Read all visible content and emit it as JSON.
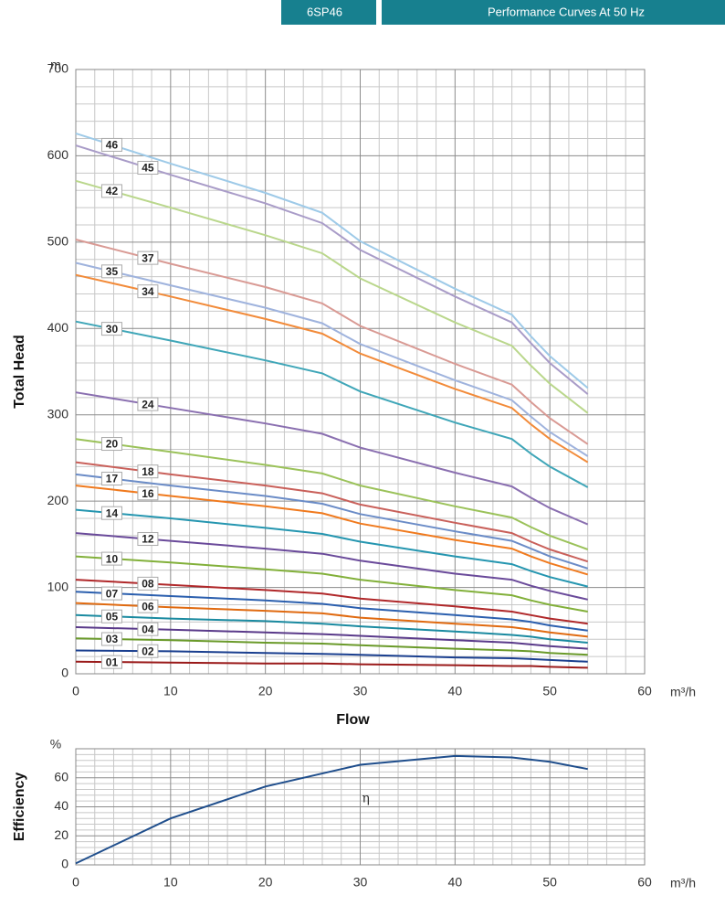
{
  "header": {
    "model": "6SP46",
    "title": "Performance Curves At 50 Hz"
  },
  "chart_data": [
    {
      "type": "line",
      "xlabel": "Flow",
      "ylabel": "Total Head",
      "x_unit": "m³/h",
      "y_unit": "m",
      "xlim": [
        0,
        60
      ],
      "xticks": [
        0,
        10,
        20,
        30,
        40,
        50,
        60
      ],
      "ylim": [
        0,
        700
      ],
      "yticks": [
        0,
        100,
        200,
        300,
        400,
        500,
        600,
        700
      ],
      "grid": true,
      "x": [
        0,
        10,
        20,
        26,
        30,
        40,
        46,
        48,
        50,
        54
      ],
      "series": [
        {
          "name": "46",
          "color": "#9ecae8",
          "values": [
            626,
            591,
            557,
            534,
            501,
            446,
            416,
            391,
            368,
            331
          ]
        },
        {
          "name": "45",
          "color": "#a99cc8",
          "values": [
            612,
            578,
            545,
            522,
            491,
            437,
            407,
            383,
            360,
            324
          ]
        },
        {
          "name": "42",
          "color": "#bad78c",
          "values": [
            571,
            540,
            508,
            487,
            458,
            407,
            380,
            357,
            336,
            302
          ]
        },
        {
          "name": "37",
          "color": "#d99a94",
          "values": [
            503,
            475,
            448,
            429,
            403,
            359,
            335,
            315,
            296,
            266
          ]
        },
        {
          "name": "35",
          "color": "#9fb3dd",
          "values": [
            476,
            450,
            424,
            406,
            382,
            340,
            317,
            298,
            280,
            252
          ]
        },
        {
          "name": "34",
          "color": "#f28b3a",
          "values": [
            462,
            437,
            411,
            394,
            371,
            330,
            308,
            289,
            272,
            245
          ]
        },
        {
          "name": "30",
          "color": "#3fa6b8",
          "values": [
            408,
            386,
            363,
            348,
            327,
            291,
            272,
            255,
            240,
            216
          ]
        },
        {
          "name": "24",
          "color": "#8a6fb0",
          "values": [
            326,
            308,
            290,
            278,
            262,
            233,
            217,
            204,
            192,
            173
          ]
        },
        {
          "name": "20",
          "color": "#9bc25a",
          "values": [
            272,
            257,
            242,
            232,
            218,
            194,
            181,
            170,
            160,
            144
          ]
        },
        {
          "name": "18",
          "color": "#c9605a",
          "values": [
            245,
            231,
            218,
            209,
            196,
            175,
            163,
            153,
            144,
            130
          ]
        },
        {
          "name": "17",
          "color": "#6b8cc7",
          "values": [
            231,
            218,
            206,
            197,
            185,
            165,
            154,
            145,
            136,
            122
          ]
        },
        {
          "name": "16",
          "color": "#f07a1e",
          "values": [
            218,
            206,
            194,
            186,
            174,
            155,
            145,
            136,
            128,
            115
          ]
        },
        {
          "name": "14",
          "color": "#2596b0",
          "values": [
            190,
            180,
            169,
            162,
            153,
            136,
            127,
            119,
            112,
            101
          ]
        },
        {
          "name": "12",
          "color": "#6a4a9a",
          "values": [
            163,
            154,
            145,
            139,
            131,
            116,
            109,
            102,
            96,
            86
          ]
        },
        {
          "name": "10",
          "color": "#82b03a",
          "values": [
            136,
            129,
            121,
            116,
            109,
            97,
            91,
            85,
            80,
            72
          ]
        },
        {
          "name": "08",
          "color": "#b0282a",
          "values": [
            109,
            103,
            97,
            93,
            87,
            78,
            72,
            68,
            64,
            58
          ]
        },
        {
          "name": "07",
          "color": "#2b5fae",
          "values": [
            95,
            90,
            85,
            81,
            76,
            68,
            63,
            60,
            56,
            50
          ]
        },
        {
          "name": "06",
          "color": "#e06a10",
          "values": [
            82,
            77,
            73,
            70,
            65,
            58,
            54,
            51,
            48,
            43
          ]
        },
        {
          "name": "05",
          "color": "#1a8aa0",
          "values": [
            68,
            64,
            61,
            58,
            55,
            49,
            45,
            43,
            40,
            36
          ]
        },
        {
          "name": "04",
          "color": "#5a3a8a",
          "values": [
            54,
            51,
            48,
            46,
            44,
            39,
            36,
            34,
            32,
            29
          ]
        },
        {
          "name": "03",
          "color": "#6a9a2a",
          "values": [
            41,
            39,
            36,
            35,
            33,
            29,
            27,
            26,
            24,
            22
          ]
        },
        {
          "name": "02",
          "color": "#1a3f8f",
          "values": [
            27,
            26,
            24,
            23,
            22,
            19,
            18,
            17,
            16,
            14
          ]
        },
        {
          "name": "01",
          "color": "#9a1a1a",
          "values": [
            14,
            13,
            12,
            12,
            11,
            10,
            9,
            9,
            8,
            7
          ]
        }
      ]
    },
    {
      "type": "line",
      "ylabel": "Efficiency",
      "x_unit": "m³/h",
      "y_unit": "%",
      "annotation": "η",
      "xlim": [
        0,
        60
      ],
      "xticks": [
        0,
        10,
        20,
        30,
        40,
        50,
        60
      ],
      "ylim": [
        0,
        80
      ],
      "yticks": [
        0,
        20,
        40,
        60
      ],
      "grid": true,
      "x": [
        0,
        10,
        20,
        30,
        40,
        46,
        50,
        54
      ],
      "series": [
        {
          "color": "#1f4e8c",
          "values": [
            1,
            32,
            54,
            69,
            75,
            74,
            71,
            66
          ]
        }
      ]
    }
  ]
}
